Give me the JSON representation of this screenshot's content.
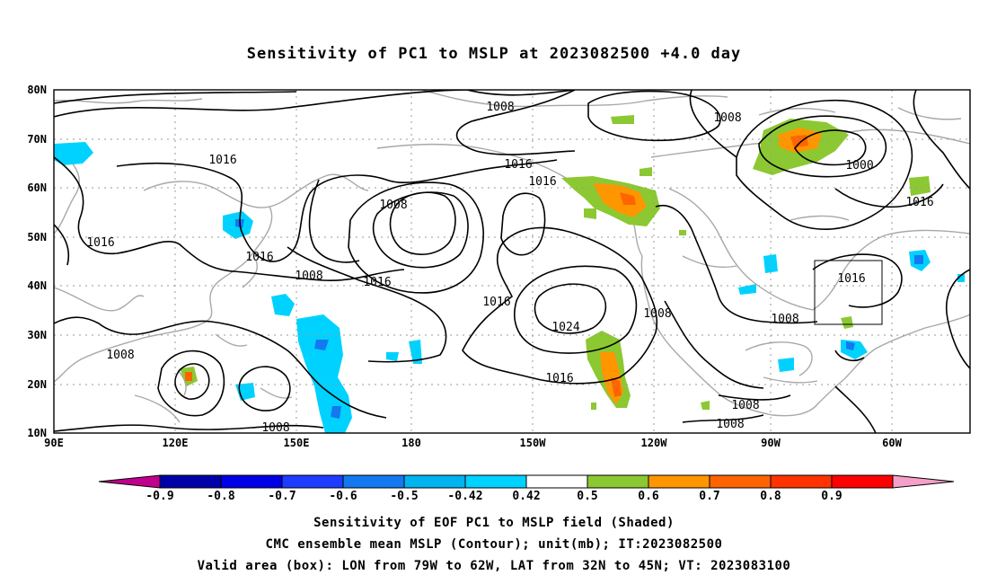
{
  "title": "Sensitivity of PC1 to MSLP at 2023082500 +4.0 day",
  "captions": [
    "Sensitivity of EOF PC1 to MSLP field (Shaded)",
    "CMC ensemble mean MSLP (Contour); unit(mb); IT:2023082500",
    "Valid area (box): LON from 79W to 62W, LAT from 32N to 45N; VT: 2023083100"
  ],
  "lat_labels": [
    "80N",
    "70N",
    "60N",
    "50N",
    "40N",
    "30N",
    "20N",
    "10N"
  ],
  "lon_labels": [
    "90E",
    "120E",
    "150E",
    "180",
    "150W",
    "120W",
    "90W",
    "60W"
  ],
  "contour_labels": [
    "1008",
    "1008",
    "1000",
    "1016",
    "1016",
    "1016",
    "1008",
    "1016",
    "1016",
    "1008",
    "1016",
    "1016",
    "1016",
    "1024",
    "1008",
    "1008",
    "1008",
    "1016",
    "1008",
    "1008",
    "1008",
    "1016"
  ],
  "colorbar": {
    "labels": [
      "-0.9",
      "-0.8",
      "-0.7",
      "-0.6",
      "-0.5",
      "-0.42",
      "0.42",
      "0.5",
      "0.6",
      "0.7",
      "0.8",
      "0.9"
    ],
    "colors": [
      "#c0008c",
      "#0000a8",
      "#0000e6",
      "#1e3cff",
      "#1478f0",
      "#00b4f0",
      "#00d2ff",
      "#ffffff",
      "#8cc832",
      "#ff9600",
      "#ff6400",
      "#ff3200",
      "#ff0000",
      "#f5a0c8"
    ]
  },
  "valid_box": {
    "lon": [
      -79,
      -62
    ],
    "lat": [
      32,
      45
    ]
  }
}
